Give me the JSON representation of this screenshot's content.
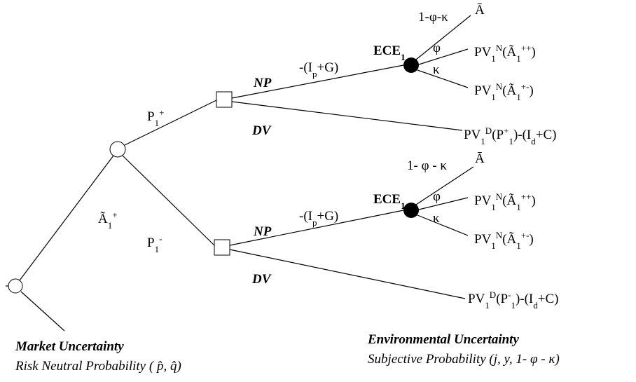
{
  "market": {
    "title": "Market Uncertainty",
    "subtitle": "Risk Neutral Probability ( p̂, q̂)"
  },
  "environment": {
    "title": "Environmental Uncertainty",
    "subtitle": "Subjective Probability (j, y, 1- φ - κ)"
  },
  "edges": {
    "a1": [
      "Ã",
      "1",
      "+"
    ],
    "p_up": [
      "P",
      "1",
      "+"
    ],
    "p_down": [
      "P",
      "1",
      "-"
    ]
  },
  "top": {
    "np": "NP",
    "dv": "DV",
    "cost": [
      "-(I",
      "p",
      "+G)"
    ],
    "ece": [
      "ECE",
      "1"
    ],
    "prob_rest": "1-φ-κ",
    "prob_phi": "φ",
    "prob_kappa": "κ",
    "out_rest": "Ā",
    "out_phi": [
      "PV",
      "1",
      "N",
      "(Ã",
      "1",
      "++",
      ")"
    ],
    "out_kappa": [
      "PV",
      "1",
      "N",
      "(Ã",
      "1",
      "+-",
      ")"
    ],
    "out_dv": [
      "PV",
      "1",
      "D",
      "(P",
      "+",
      "1",
      ")-(I",
      "d",
      "+C)"
    ]
  },
  "bottom": {
    "np": "NP",
    "dv": "DV",
    "cost": [
      "-(I",
      "p",
      "+G)"
    ],
    "ece": [
      "ECE",
      "1"
    ],
    "prob_rest": "1- φ - κ",
    "prob_phi": "φ",
    "prob_kappa": "κ",
    "out_rest": "Ā",
    "out_phi": [
      "PV",
      "1",
      "N",
      "(Ã",
      "1",
      "++",
      ")"
    ],
    "out_kappa": [
      "PV",
      "1",
      "N",
      "(Ã",
      "1",
      "+-",
      ")"
    ],
    "out_dv": [
      "PV",
      "1",
      "D",
      "(P",
      "-",
      "1",
      ")-(I",
      "d",
      "+C)"
    ]
  }
}
